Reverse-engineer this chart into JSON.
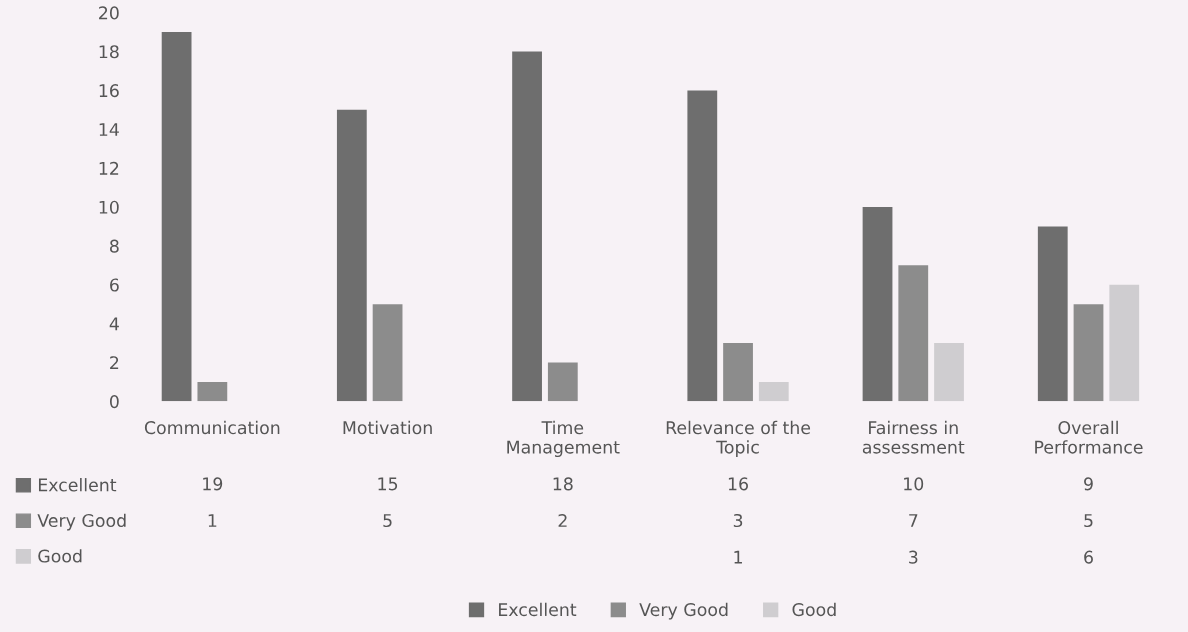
{
  "chart_data": {
    "type": "bar",
    "categories": [
      "Communication",
      "Motivation",
      "Time\nManagement",
      "Relevance of the\nTopic",
      "Fairness in\nassessment",
      "Overall\nPerformance"
    ],
    "series": [
      {
        "name": "Excellent",
        "color": "#6e6e6e",
        "values": [
          19,
          15,
          18,
          16,
          10,
          9
        ]
      },
      {
        "name": "Very Good",
        "color": "#8c8c8c",
        "values": [
          1,
          5,
          2,
          3,
          7,
          5
        ]
      },
      {
        "name": "Good",
        "color": "#cfcdd0",
        "values": [
          null,
          null,
          null,
          1,
          3,
          6
        ]
      }
    ],
    "ylim": [
      0,
      20
    ],
    "yticks": [
      0,
      2,
      4,
      6,
      8,
      10,
      12,
      14,
      16,
      18,
      20
    ],
    "grid": false,
    "legend": "bottom",
    "data_labels": true
  }
}
